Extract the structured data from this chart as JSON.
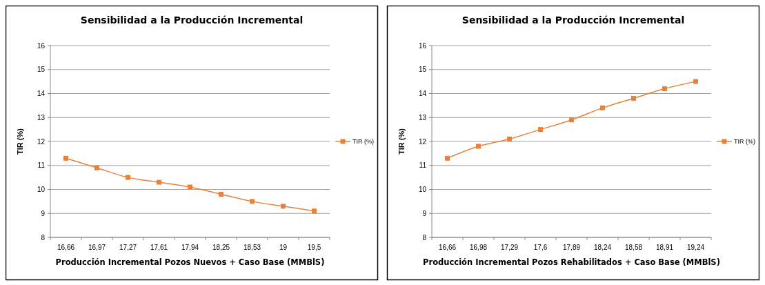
{
  "chart_data": [
    {
      "type": "line",
      "title": "Sensibilidad a la  Producción Incremental",
      "xlabel": "Producción  Incremental  Pozos  Nuevos  + Caso Base (MMBlS)",
      "ylabel": "TIR (%)",
      "categories": [
        "16,66",
        "16,97",
        "17,27",
        "17,61",
        "17,94",
        "18,25",
        "18,53",
        "19",
        "19,5"
      ],
      "series": [
        {
          "name": "TIR (%)",
          "color": "#e8823a",
          "values": [
            11.3,
            10.9,
            10.5,
            10.3,
            10.1,
            9.8,
            9.5,
            9.3,
            9.1
          ]
        }
      ],
      "ylim": [
        8,
        16
      ],
      "yticks": [
        8,
        9,
        10,
        11,
        12,
        13,
        14,
        15,
        16
      ],
      "grid": "y",
      "legend": "right",
      "marker": "square"
    },
    {
      "type": "line",
      "title": "Sensibilidad a la  Producción Incremental",
      "xlabel": "Producción  Incremental  Pozos  Rehabilitados  + Caso Base (MMBlS)",
      "ylabel": "TIR (%)",
      "categories": [
        "16,66",
        "16,98",
        "17,29",
        "17,6",
        "17,89",
        "18,24",
        "18,58",
        "18,91",
        "19,24"
      ],
      "series": [
        {
          "name": "TIR (%)",
          "color": "#e8823a",
          "values": [
            11.3,
            11.8,
            12.1,
            12.5,
            12.9,
            13.4,
            13.8,
            14.2,
            14.5
          ]
        }
      ],
      "ylim": [
        8,
        16
      ],
      "yticks": [
        8,
        9,
        10,
        11,
        12,
        13,
        14,
        15,
        16
      ],
      "grid": "y",
      "legend": "right",
      "marker": "square"
    }
  ]
}
